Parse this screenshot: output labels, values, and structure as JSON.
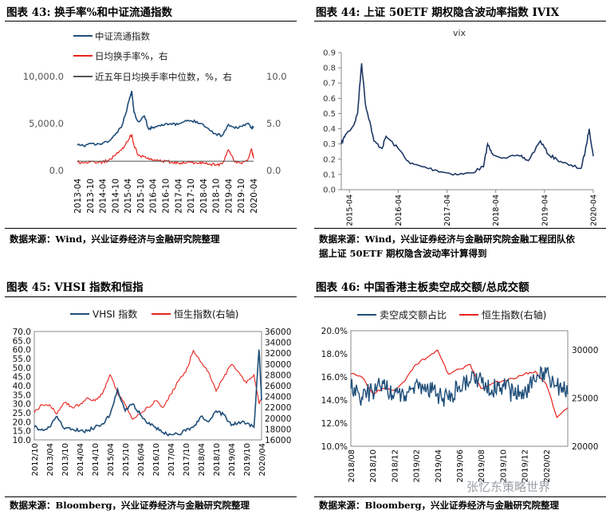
{
  "charts": [
    {
      "figure_label": "图表 43:",
      "figure_title": "换手率%和中证流通指数",
      "source_text": "数据来源：Wind，兴业证券经济与金融研究院整理",
      "source_text_2": "",
      "legend": [
        "中证流通指数",
        "日均换手率%，右",
        "近五年日均换手率中位数，%，右"
      ],
      "colors": [
        "#1f4e79",
        "#e8231c",
        "#555555"
      ],
      "y_left_ticks": [
        "10,000.0",
        "5,000.0",
        "0.0"
      ],
      "y_right_ticks": [
        "10.0",
        "5.0",
        "0.0"
      ],
      "x_ticks": [
        "2013-04",
        "2013-10",
        "2014-04",
        "2014-10",
        "2015-04",
        "2015-10",
        "2016-04",
        "2016-10",
        "2017-04",
        "2017-10",
        "2018-04",
        "2018-10",
        "2019-04",
        "2019-10",
        "2020-04"
      ]
    },
    {
      "figure_label": "图表 44:",
      "figure_title": "上证 50ETF 期权隐含波动率指数 IVIX",
      "source_text": "数据来源：Wind，兴业证券经济与金融研究院金融工程团队依",
      "source_text_2": "据上证 50ETF 期权隐含波动率计算得到",
      "chart_title": "vix",
      "colors": [
        "#1f3864"
      ],
      "y_left_ticks": [
        "0.9",
        "0.8",
        "0.7",
        "0.6",
        "0.5",
        "0.4",
        "0.3",
        "0.2",
        "0.1",
        "0.0"
      ],
      "x_ticks": [
        "2015-04",
        "2016-04",
        "2017-04",
        "2018-04",
        "2019-04",
        "2020-04"
      ]
    },
    {
      "figure_label": "图表 45:",
      "figure_title": "VHSI 指数和恒指",
      "source_text": "数据来源：Bloomberg，兴业证券经济与金融研究院整理",
      "source_text_2": "",
      "legend": [
        "VHSI 指数",
        "恒生指数(右轴)"
      ],
      "colors": [
        "#1f4e79",
        "#e8231c"
      ],
      "y_left_ticks": [
        "70.0",
        "65.0",
        "60.0",
        "55.0",
        "50.0",
        "45.0",
        "40.0",
        "35.0",
        "30.0",
        "25.0",
        "20.0",
        "15.0",
        "10.0"
      ],
      "y_right_ticks": [
        "36000",
        "34000",
        "32000",
        "30000",
        "28000",
        "26000",
        "24000",
        "22000",
        "20000",
        "18000",
        "16000"
      ],
      "x_ticks": [
        "2012/10",
        "2013/04",
        "2013/10",
        "2014/04",
        "2014/10",
        "2015/04",
        "2015/10",
        "2016/04",
        "2016/10",
        "2017/04",
        "2017/10",
        "2018/04",
        "2018/10",
        "2019/04",
        "2019/10",
        "2020/04"
      ]
    },
    {
      "figure_label": "图表 46:",
      "figure_title": "中国香港主板卖空成交额/总成交额",
      "source_text": "数据来源：Bloomberg，兴业证券经济与金融研究院整理",
      "source_text_2": "",
      "legend": [
        "卖空成交额占比",
        "恒生指数(右轴)"
      ],
      "colors": [
        "#1f4e79",
        "#e8231c"
      ],
      "y_left_ticks": [
        "20.0%",
        "18.0%",
        "16.0%",
        "14.0%",
        "12.0%",
        "10.0%"
      ],
      "y_right_ticks": [
        "30000",
        "25000",
        "20000"
      ],
      "x_ticks": [
        "2018/08",
        "2018/10",
        "2018/12",
        "2019/02",
        "2019/04",
        "2019/06",
        "2019/08",
        "2019/10",
        "2019/12",
        "2020/02"
      ]
    }
  ],
  "watermark": "张忆东策略世界",
  "chart_data": [
    {
      "type": "line",
      "title": "换手率%和中证流通指数",
      "x": [
        "2013-04",
        "2013-07",
        "2013-10",
        "2014-01",
        "2014-04",
        "2014-07",
        "2014-10",
        "2015-01",
        "2015-03",
        "2015-05",
        "2015-06",
        "2015-07",
        "2015-09",
        "2015-12",
        "2016-02",
        "2016-04",
        "2016-07",
        "2016-10",
        "2017-01",
        "2017-04",
        "2017-07",
        "2017-10",
        "2018-01",
        "2018-04",
        "2018-07",
        "2018-10",
        "2019-01",
        "2019-04",
        "2019-07",
        "2019-10",
        "2020-01",
        "2020-03",
        "2020-04"
      ],
      "series": [
        {
          "name": "中证流通指数",
          "axis": "left",
          "values": [
            2700,
            2600,
            2900,
            2750,
            2900,
            3100,
            3800,
            4600,
            6000,
            7800,
            8400,
            6200,
            5200,
            5800,
            4400,
            4600,
            4800,
            5000,
            4900,
            4900,
            5200,
            5300,
            5200,
            4900,
            4300,
            3900,
            3700,
            4900,
            4500,
            4700,
            5000,
            4500,
            4700
          ]
        },
        {
          "name": "日均换手率%，右",
          "axis": "right",
          "values": [
            0.9,
            0.8,
            0.9,
            0.8,
            0.9,
            1.1,
            1.6,
            2.2,
            2.8,
            3.6,
            3.8,
            2.7,
            1.6,
            1.5,
            1.2,
            1.1,
            1.0,
            1.0,
            0.9,
            0.8,
            0.8,
            0.9,
            0.8,
            0.8,
            0.7,
            0.6,
            0.7,
            2.2,
            0.9,
            0.8,
            1.0,
            2.3,
            1.3
          ]
        },
        {
          "name": "近五年日均换手率中位数，%，右",
          "axis": "right",
          "values": [
            1.0,
            1.0,
            1.0,
            1.0,
            1.0,
            1.0,
            1.0,
            1.0,
            1.0,
            1.0,
            1.0,
            1.0,
            1.0,
            1.0,
            1.0,
            1.0,
            1.0,
            1.0,
            1.0,
            1.0,
            1.0,
            1.0,
            1.0,
            1.0,
            1.0,
            1.0,
            1.0,
            1.0,
            1.0,
            1.0,
            1.0,
            1.0,
            1.0
          ]
        }
      ],
      "ylim_left": [
        0,
        10000
      ],
      "ylim_right": [
        0,
        10
      ],
      "legend_position": "top-left"
    },
    {
      "type": "line",
      "title": "vix",
      "x": [
        "2015-02",
        "2015-03",
        "2015-05",
        "2015-06",
        "2015-07",
        "2015-08",
        "2015-09",
        "2015-10",
        "2015-12",
        "2016-01",
        "2016-04",
        "2016-07",
        "2016-10",
        "2017-01",
        "2017-04",
        "2017-07",
        "2017-10",
        "2018-01",
        "2018-02",
        "2018-03",
        "2018-06",
        "2018-10",
        "2018-12",
        "2019-03",
        "2019-05",
        "2019-07",
        "2019-10",
        "2020-01",
        "2020-02",
        "2020-03",
        "2020-04"
      ],
      "series": [
        {
          "name": "vix",
          "values": [
            0.3,
            0.36,
            0.42,
            0.5,
            0.83,
            0.55,
            0.45,
            0.32,
            0.27,
            0.35,
            0.27,
            0.17,
            0.15,
            0.13,
            0.11,
            0.1,
            0.11,
            0.15,
            0.3,
            0.24,
            0.21,
            0.22,
            0.19,
            0.32,
            0.23,
            0.2,
            0.16,
            0.14,
            0.25,
            0.4,
            0.22
          ]
        }
      ],
      "ylim": [
        0,
        0.9
      ]
    },
    {
      "type": "line",
      "title": "VHSI 指数和恒指",
      "x": [
        "2012-10",
        "2013-01",
        "2013-04",
        "2013-07",
        "2013-10",
        "2014-01",
        "2014-04",
        "2014-07",
        "2014-10",
        "2015-01",
        "2015-04",
        "2015-07",
        "2015-10",
        "2016-01",
        "2016-04",
        "2016-07",
        "2016-10",
        "2017-01",
        "2017-04",
        "2017-07",
        "2017-10",
        "2018-01",
        "2018-04",
        "2018-07",
        "2018-10",
        "2019-01",
        "2019-04",
        "2019-07",
        "2019-10",
        "2020-01",
        "2020-03",
        "2020-04"
      ],
      "series": [
        {
          "name": "VHSI 指数",
          "axis": "left",
          "values": [
            17,
            16,
            17,
            23,
            16,
            16,
            15,
            15,
            17,
            19,
            24,
            38,
            26,
            30,
            24,
            19,
            17,
            14,
            13,
            13,
            15,
            17,
            23,
            20,
            26,
            24,
            18,
            20,
            19,
            17,
            60,
            32
          ]
        },
        {
          "name": "恒生指数(右轴)",
          "axis": "right",
          "values": [
            21000,
            22500,
            22500,
            20800,
            22900,
            22000,
            22500,
            23800,
            23200,
            24500,
            28000,
            24600,
            22500,
            19800,
            20800,
            22000,
            23200,
            22000,
            24400,
            26800,
            28500,
            32500,
            30300,
            28500,
            25000,
            27500,
            29900,
            28500,
            26500,
            28000,
            22800,
            23500
          ]
        }
      ],
      "ylim_left": [
        10,
        70
      ],
      "ylim_right": [
        16000,
        36000
      ],
      "legend_position": "top"
    },
    {
      "type": "line",
      "title": "中国香港主板卖空成交额/总成交额",
      "x": [
        "2018-08",
        "2018-09",
        "2018-10",
        "2018-11",
        "2018-12",
        "2019-01",
        "2019-02",
        "2019-03",
        "2019-04",
        "2019-05",
        "2019-06",
        "2019-07",
        "2019-08",
        "2019-09",
        "2019-10",
        "2019-11",
        "2019-12",
        "2020-01",
        "2020-02",
        "2020-03",
        "2020-04"
      ],
      "series": [
        {
          "name": "卖空成交额占比",
          "axis": "left",
          "values": [
            15.0,
            14.2,
            14.8,
            15.4,
            14.5,
            14.4,
            15.5,
            15.0,
            14.6,
            14.0,
            15.2,
            15.5,
            16.0,
            14.9,
            15.4,
            14.4,
            14.7,
            15.6,
            16.3,
            15.2,
            14.5
          ]
        },
        {
          "name": "恒生指数(右轴)",
          "axis": "right",
          "values": [
            27500,
            27200,
            25500,
            26000,
            25800,
            26800,
            28500,
            29200,
            30000,
            27500,
            28000,
            28500,
            26000,
            26500,
            26800,
            27000,
            27500,
            27800,
            26500,
            23000,
            24000
          ]
        }
      ],
      "ylim_left": [
        10,
        20
      ],
      "ylim_right": [
        20000,
        32000
      ],
      "legend_position": "top"
    }
  ]
}
